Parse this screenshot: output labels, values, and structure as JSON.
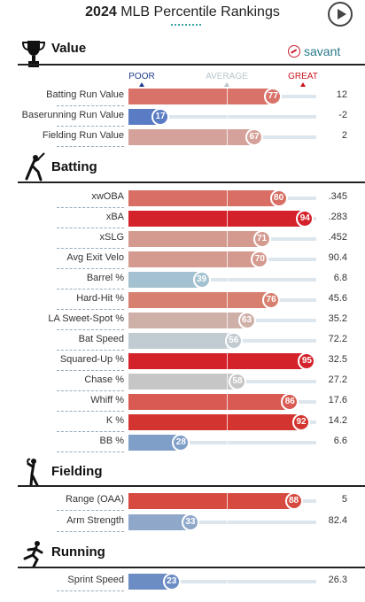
{
  "header": {
    "title_year": "2024",
    "title_rest": "MLB Percentile Rankings"
  },
  "brand": {
    "label": "savant"
  },
  "legend": {
    "poor": {
      "label": "POOR",
      "color": "#1f3c8c"
    },
    "average": {
      "label": "AVERAGE",
      "color": "#b8c4cc"
    },
    "great": {
      "label": "GREAT",
      "color": "#c8141e"
    }
  },
  "sections": {
    "value": {
      "title": "Value",
      "icon": "trophy-icon",
      "rows": [
        {
          "label": "Batting Run Value",
          "percentile": 77,
          "value": "12",
          "color": "#d9736a"
        },
        {
          "label": "Baserunning Run Value",
          "percentile": 17,
          "value": "-2",
          "color": "#5a7cc4"
        },
        {
          "label": "Fielding Run Value",
          "percentile": 67,
          "value": "2",
          "color": "#d4a29a"
        }
      ]
    },
    "batting": {
      "title": "Batting",
      "icon": "batter-icon",
      "rows": [
        {
          "label": "xwOBA",
          "percentile": 80,
          "value": ".345",
          "color": "#d86e64"
        },
        {
          "label": "xBA",
          "percentile": 94,
          "value": ".283",
          "color": "#d4222a"
        },
        {
          "label": "xSLG",
          "percentile": 71,
          "value": ".452",
          "color": "#d49a90"
        },
        {
          "label": "Avg Exit Velo",
          "percentile": 70,
          "value": "90.4",
          "color": "#d49a90"
        },
        {
          "label": "Barrel %",
          "percentile": 39,
          "value": "6.8",
          "color": "#a3c1d0"
        },
        {
          "label": "Hard-Hit %",
          "percentile": 76,
          "value": "45.6",
          "color": "#d7806f"
        },
        {
          "label": "LA Sweet-Spot %",
          "percentile": 63,
          "value": "35.2",
          "color": "#cfb0a8"
        },
        {
          "label": "Bat Speed",
          "percentile": 56,
          "value": "72.2",
          "color": "#c1ccd2"
        },
        {
          "label": "Squared-Up %",
          "percentile": 95,
          "value": "32.5",
          "color": "#d4222a"
        },
        {
          "label": "Chase %",
          "percentile": 58,
          "value": "27.2",
          "color": "#c6c6c6"
        },
        {
          "label": "Whiff %",
          "percentile": 86,
          "value": "17.6",
          "color": "#d85a52"
        },
        {
          "label": "K %",
          "percentile": 92,
          "value": "14.2",
          "color": "#d4342f"
        },
        {
          "label": "BB %",
          "percentile": 28,
          "value": "6.6",
          "color": "#7f9ec8"
        }
      ]
    },
    "fielding": {
      "title": "Fielding",
      "icon": "fielder-icon",
      "rows": [
        {
          "label": "Range (OAA)",
          "percentile": 88,
          "value": "5",
          "color": "#d64a40"
        },
        {
          "label": "Arm Strength",
          "percentile": 33,
          "value": "82.4",
          "color": "#8fa8ca"
        }
      ]
    },
    "running": {
      "title": "Running",
      "icon": "runner-icon",
      "rows": [
        {
          "label": "Sprint Speed",
          "percentile": 23,
          "value": "26.3",
          "color": "#6c8cc4"
        }
      ]
    }
  }
}
